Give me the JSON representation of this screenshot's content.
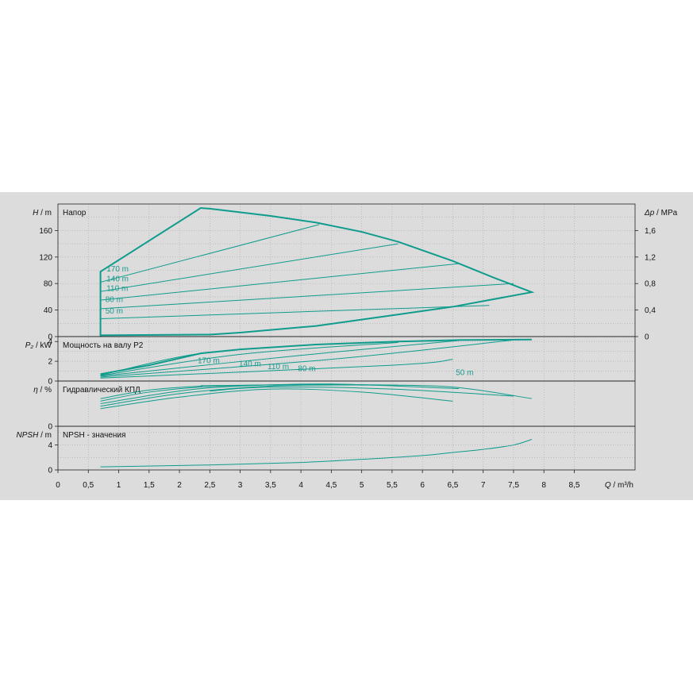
{
  "chart_data": {
    "type": "line",
    "x_axis": {
      "min": 0,
      "max": 9.5,
      "ticks": [
        "0",
        "0,5",
        "1",
        "1,5",
        "2",
        "2,5",
        "3",
        "3,5",
        "4",
        "4,5",
        "5",
        "5,5",
        "6",
        "6,5",
        "7",
        "7,5",
        "8",
        "8,5"
      ],
      "label_sym": "Q",
      "label_unit": " / m³/h"
    },
    "colors": {
      "curve": "#0f9c8c",
      "label": "#1a9a8e",
      "background": "#dcdcdc"
    },
    "panels": [
      {
        "id": "head",
        "title": "Напор",
        "y_sym": "H",
        "y_unit": " / m",
        "ylim": [
          0,
          200
        ],
        "y_ticks": [
          "0",
          "40",
          "80",
          "120",
          "160"
        ],
        "right_sym": "Δp",
        "right_unit": " / MPa",
        "right_lim": [
          0,
          2.0
        ],
        "right_ticks": [
          "0",
          "0,4",
          "0,8",
          "1,2",
          "1,6"
        ],
        "envelope": [
          [
            0.7,
            0
          ],
          [
            0.7,
            98
          ],
          [
            2.35,
            194
          ],
          [
            2.5,
            193
          ],
          [
            3.5,
            182
          ],
          [
            4.25,
            172
          ],
          [
            5.0,
            158
          ],
          [
            5.6,
            143
          ],
          [
            6.5,
            114
          ],
          [
            7.2,
            88
          ],
          [
            7.8,
            67
          ],
          [
            6.5,
            45
          ],
          [
            5.5,
            32
          ],
          [
            4.25,
            16
          ],
          [
            3.0,
            6
          ],
          [
            2.5,
            3
          ],
          [
            0.7,
            2
          ]
        ],
        "curves": [
          {
            "label": "170 m",
            "pts": [
              [
                0.7,
                82
              ],
              [
                4.3,
                169
              ]
            ]
          },
          {
            "label": "140 m",
            "pts": [
              [
                0.7,
                68
              ],
              [
                5.6,
                140
              ]
            ]
          },
          {
            "label": "110 m",
            "pts": [
              [
                0.7,
                55
              ],
              [
                6.6,
                110
              ]
            ]
          },
          {
            "label": "80 m",
            "pts": [
              [
                0.7,
                42
              ],
              [
                7.5,
                80
              ]
            ]
          },
          {
            "label": "50 m",
            "pts": [
              [
                0.7,
                27
              ],
              [
                7.1,
                47
              ]
            ]
          }
        ],
        "labels": [
          {
            "text": "170 m",
            "x": 0.8,
            "y": 98
          },
          {
            "text": "140 m",
            "x": 0.8,
            "y": 83
          },
          {
            "text": "110 m",
            "x": 0.8,
            "y": 69
          },
          {
            "text": "80 m",
            "x": 0.78,
            "y": 52
          },
          {
            "text": "50 m",
            "x": 0.78,
            "y": 35
          }
        ]
      },
      {
        "id": "power",
        "title": "Мощность на валу P2",
        "y_sym": "P₂",
        "y_unit": " / kW",
        "ylim": [
          0,
          4.5
        ],
        "y_ticks": [
          "0",
          "2",
          "4"
        ],
        "envelope": [
          [
            0.7,
            0.7
          ],
          [
            1.5,
            1.6
          ],
          [
            2.35,
            2.8
          ],
          [
            3.0,
            3.2
          ],
          [
            4.25,
            3.7
          ],
          [
            5.6,
            4.0
          ],
          [
            6.6,
            4.15
          ],
          [
            7.8,
            4.2
          ]
        ],
        "curves": [
          {
            "label": "170 m",
            "pts": [
              [
                0.7,
                0.6
              ],
              [
                2.35,
                2.8
              ],
              [
                4.3,
                3.7
              ]
            ]
          },
          {
            "label": "140 m",
            "pts": [
              [
                0.7,
                0.55
              ],
              [
                3.0,
                2.7
              ],
              [
                5.6,
                3.9
              ]
            ]
          },
          {
            "label": "110 m",
            "pts": [
              [
                0.7,
                0.5
              ],
              [
                4.0,
                2.6
              ],
              [
                6.6,
                4.1
              ]
            ]
          },
          {
            "label": "80 m",
            "pts": [
              [
                0.7,
                0.4
              ],
              [
                4.5,
                2.2
              ],
              [
                7.5,
                4.15
              ]
            ]
          },
          {
            "label": "50 m",
            "pts": [
              [
                0.7,
                0.3
              ],
              [
                5.5,
                1.6
              ],
              [
                6.5,
                2.2
              ]
            ]
          }
        ],
        "labels": [
          {
            "text": "170 m",
            "x": 2.3,
            "y": 1.8
          },
          {
            "text": "140 m",
            "x": 2.98,
            "y": 1.5
          },
          {
            "text": "110 m",
            "x": 3.45,
            "y": 1.2
          },
          {
            "text": "80 m",
            "x": 3.95,
            "y": 1.0
          },
          {
            "text": "50 m",
            "x": 6.55,
            "y": 0.6
          }
        ]
      },
      {
        "id": "efficiency",
        "title": "Гидравлический КПД",
        "y_sym": "η",
        "y_unit": " / %",
        "ylim": [
          0,
          90
        ],
        "y_ticks": [
          "0"
        ],
        "curves": [
          {
            "label": "170 m",
            "pts": [
              [
                0.7,
                55
              ],
              [
                1.5,
                72
              ],
              [
                2.35,
                80
              ],
              [
                2.5,
                81
              ],
              [
                4.3,
                83
              ]
            ]
          },
          {
            "label": "140 m",
            "pts": [
              [
                0.7,
                50
              ],
              [
                1.5,
                68
              ],
              [
                2.5,
                79
              ],
              [
                4.0,
                83
              ],
              [
                5.6,
                82
              ]
            ]
          },
          {
            "label": "110 m",
            "pts": [
              [
                0.7,
                45
              ],
              [
                2.0,
                70
              ],
              [
                3.0,
                80
              ],
              [
                4.5,
                84
              ],
              [
                6.6,
                75
              ]
            ]
          },
          {
            "label": "80 m",
            "pts": [
              [
                0.7,
                40
              ],
              [
                2.0,
                65
              ],
              [
                3.5,
                80
              ],
              [
                5.0,
                82
              ],
              [
                6.5,
                78
              ],
              [
                7.8,
                55
              ]
            ]
          },
          {
            "label": "50 m",
            "pts": [
              [
                0.7,
                35
              ],
              [
                2.0,
                58
              ],
              [
                3.5,
                74
              ],
              [
                5.0,
                68
              ],
              [
                6.5,
                50
              ]
            ]
          },
          {
            "label": "",
            "pts": [
              [
                2.5,
                70
              ],
              [
                3.5,
                78
              ],
              [
                5.5,
                74
              ],
              [
                7.5,
                60
              ]
            ]
          }
        ]
      },
      {
        "id": "npsh",
        "title": "NPSH - значения",
        "y_sym": "NPSH",
        "y_unit": " / m",
        "ylim": [
          0,
          7
        ],
        "y_ticks": [
          "0",
          "4"
        ],
        "curves": [
          {
            "label": "",
            "pts": [
              [
                0.7,
                0.5
              ],
              [
                2.5,
                0.8
              ],
              [
                4.0,
                1.2
              ],
              [
                5.0,
                1.7
              ],
              [
                6.0,
                2.3
              ],
              [
                6.5,
                2.8
              ],
              [
                7.0,
                3.3
              ],
              [
                7.5,
                4.0
              ],
              [
                7.8,
                4.9
              ]
            ]
          }
        ]
      }
    ]
  }
}
